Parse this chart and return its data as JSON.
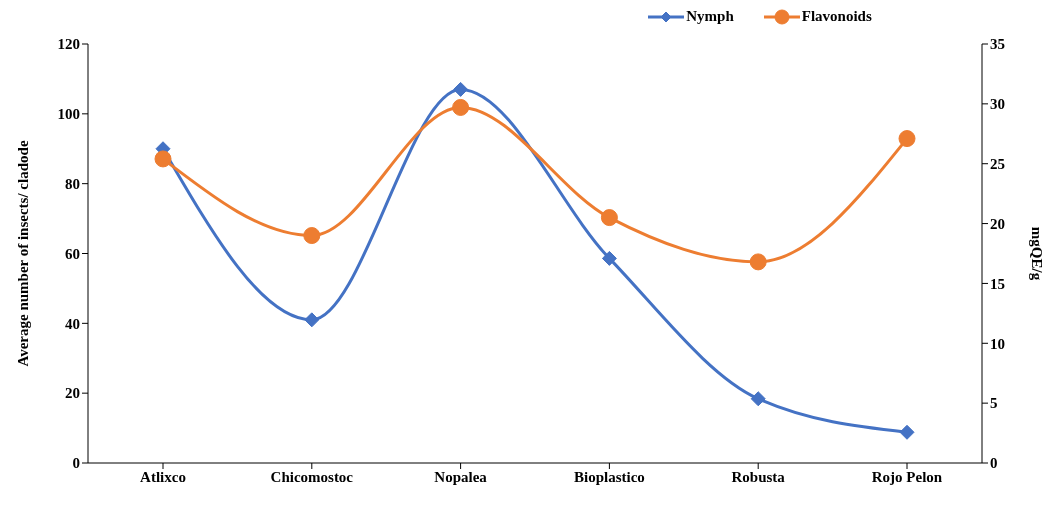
{
  "chart_data": {
    "type": "line",
    "categories": [
      "Atlixco",
      "Chicomostoc",
      "Nopalea",
      "Bioplastico",
      "Robusta",
      "Rojo Pelon"
    ],
    "ylabel": "Average number of insects/ cladode",
    "y2label": "mgQE/g",
    "series": [
      {
        "name": "Nymph",
        "color": "#4472c4",
        "marker": "diamond",
        "values": [
          90,
          41,
          107,
          58.6,
          18.4,
          8.8
        ]
      },
      {
        "name": "Flavonoids",
        "color": "#ed7d31",
        "marker": "circle",
        "axis": "y2",
        "values": [
          25.4,
          19.0,
          29.7,
          20.5,
          16.8,
          27.1
        ]
      }
    ],
    "ylim": [
      0,
      120
    ],
    "yticks": [
      0,
      20,
      40,
      60,
      80,
      100,
      120
    ],
    "y2lim": [
      0,
      35
    ],
    "y2ticks": [
      0,
      5,
      10,
      15,
      20,
      25,
      30,
      35
    ],
    "grid": false,
    "legend": "top"
  }
}
